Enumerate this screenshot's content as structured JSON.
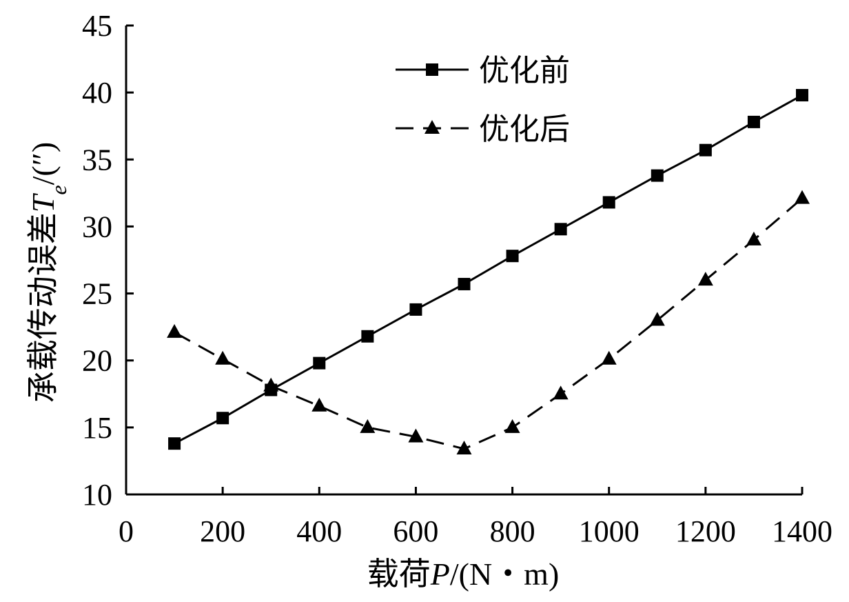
{
  "chart_data": {
    "type": "line",
    "title": "",
    "xlabel": "载荷P/(N・m)",
    "ylabel": "承载传动误差Te/(″)",
    "xlim": [
      0,
      1400
    ],
    "ylim": [
      10,
      45
    ],
    "x_ticks": [
      0,
      200,
      400,
      600,
      800,
      1000,
      1200,
      1400
    ],
    "y_ticks": [
      10,
      15,
      20,
      25,
      30,
      35,
      40,
      45
    ],
    "grid": false,
    "legend_position": "top-center",
    "x": [
      100,
      200,
      300,
      400,
      500,
      600,
      700,
      800,
      900,
      1000,
      1100,
      1200,
      1300,
      1400
    ],
    "series": [
      {
        "name": "优化前",
        "marker": "square",
        "line_style": "solid",
        "color": "#000000",
        "values": [
          13.8,
          15.7,
          17.8,
          19.8,
          21.8,
          23.8,
          25.7,
          27.8,
          29.8,
          31.8,
          33.8,
          35.7,
          37.8,
          39.8
        ]
      },
      {
        "name": "优化后",
        "marker": "triangle",
        "line_style": "dashed",
        "color": "#000000",
        "values": [
          22.1,
          20.1,
          18.1,
          16.6,
          15.0,
          14.3,
          13.4,
          15.0,
          17.5,
          20.1,
          23.0,
          26.0,
          29.0,
          32.1
        ]
      }
    ]
  }
}
